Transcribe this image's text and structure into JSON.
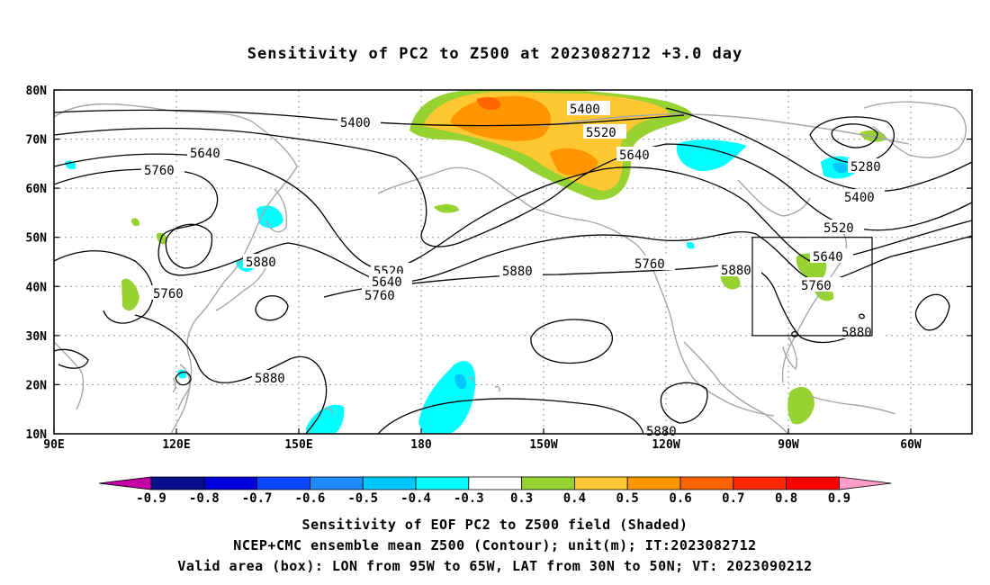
{
  "title": "Sensitivity of PC2 to Z500 at 2023082712 +3.0 day",
  "map": {
    "lon_range": [
      "90E",
      "50W"
    ],
    "lat_range": [
      "10N",
      "80N"
    ],
    "lat_ticks": [
      "80N",
      "70N",
      "60N",
      "50N",
      "40N",
      "30N",
      "20N",
      "10N"
    ],
    "lon_ticks": [
      "90E",
      "120E",
      "150E",
      "180",
      "150W",
      "120W",
      "90W",
      "60W"
    ],
    "contour_labels": [
      "5400",
      "5400",
      "5400",
      "5520",
      "5520",
      "5520",
      "5640",
      "5640",
      "5640",
      "5640",
      "5760",
      "5760",
      "5760",
      "5760",
      "5760",
      "5880",
      "5880",
      "5880",
      "5880",
      "5880",
      "5880",
      "5280"
    ],
    "valid_box": {
      "lon": [
        "95W",
        "65W"
      ],
      "lat": [
        "30N",
        "50N"
      ]
    }
  },
  "colorbar": {
    "labels": [
      "-0.9",
      "-0.8",
      "-0.7",
      "-0.6",
      "-0.5",
      "-0.4",
      "-0.3",
      "0.3",
      "0.4",
      "0.5",
      "0.6",
      "0.7",
      "0.8",
      "0.9"
    ],
    "colors": [
      "#c400a4",
      "#08108c",
      "#0000dc",
      "#0a46ff",
      "#1e8cff",
      "#00c8ff",
      "#00ffff",
      "#ffffff",
      "#96d232",
      "#ffc832",
      "#ff9600",
      "#ff6400",
      "#ff2800",
      "#ff0000",
      "#ff9cc8"
    ]
  },
  "caption_line1": "Sensitivity of EOF PC2 to Z500 field (Shaded)",
  "caption_line2": "NCEP+CMC ensemble mean Z500 (Contour); unit(m); IT:2023082712",
  "caption_line3": "Valid area (box): LON from 95W to 65W, LAT from 30N to 50N; VT: 2023090212"
}
